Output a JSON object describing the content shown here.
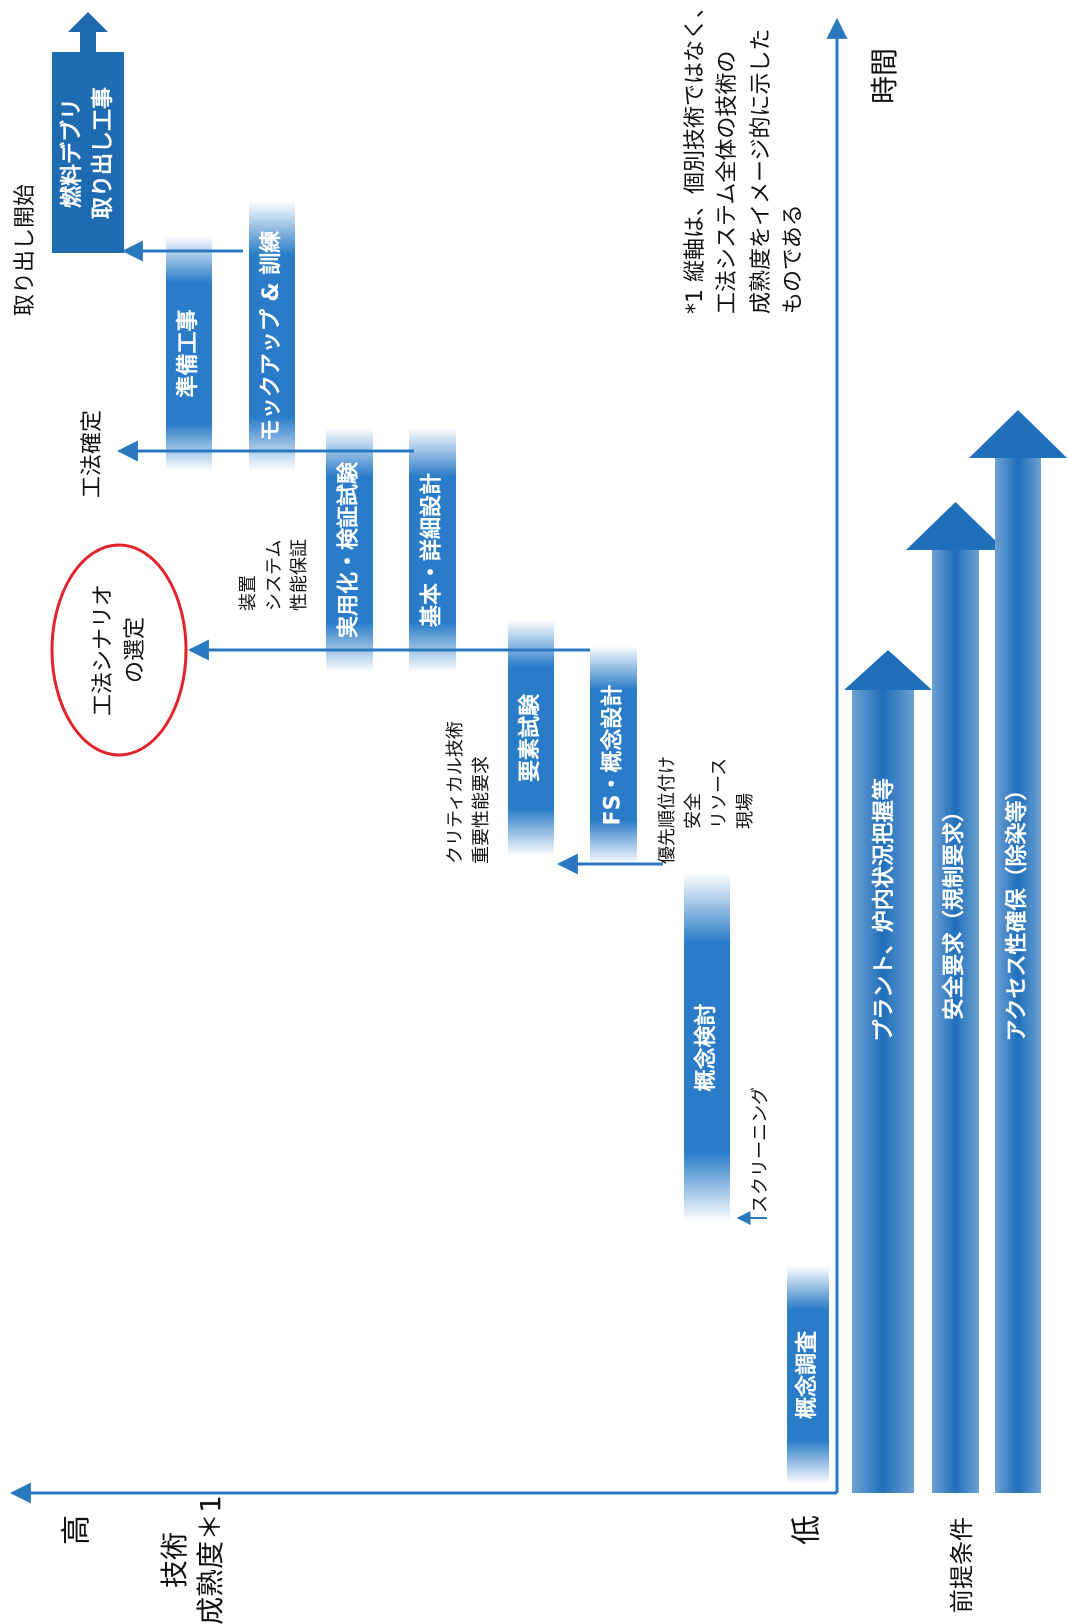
{
  "axes": {
    "high": "高",
    "maturity": [
      "技術",
      "成熟度＊1"
    ],
    "low": "低",
    "time": "時間",
    "prerequisites_title": "前提条件"
  },
  "note": [
    "*1 縦軸は、個別技術ではなく、",
    "工法システム全体の技術の",
    "成熟度をイメージ的に示した",
    "ものである"
  ],
  "stages": [
    "概念調査",
    "概念検討",
    "要素試験",
    "FS・概念設計",
    "実用化・検証試験",
    "基本・詳細設計",
    "準備工事",
    "モックアップ & 訓練"
  ],
  "final_stage": [
    "燃料デブリ",
    "取り出し工事"
  ],
  "milestones": {
    "scenario": [
      "工法シナリオ",
      "の選定"
    ],
    "method_fixed": "工法確定",
    "start": "取り出し開始"
  },
  "annotations": {
    "screening": "スクリーニング",
    "fs": [
      "優先順位付け",
      "安全",
      "リソース",
      "現場"
    ],
    "element": [
      "クリティカル技術",
      "重要性能要求"
    ],
    "practical": [
      "装置",
      "システム",
      "性能保証"
    ]
  },
  "prerequisites": [
    "プラント、炉内状況把握等",
    "安全要求（規制要求）",
    "アクセス性確保（除染等）"
  ]
}
